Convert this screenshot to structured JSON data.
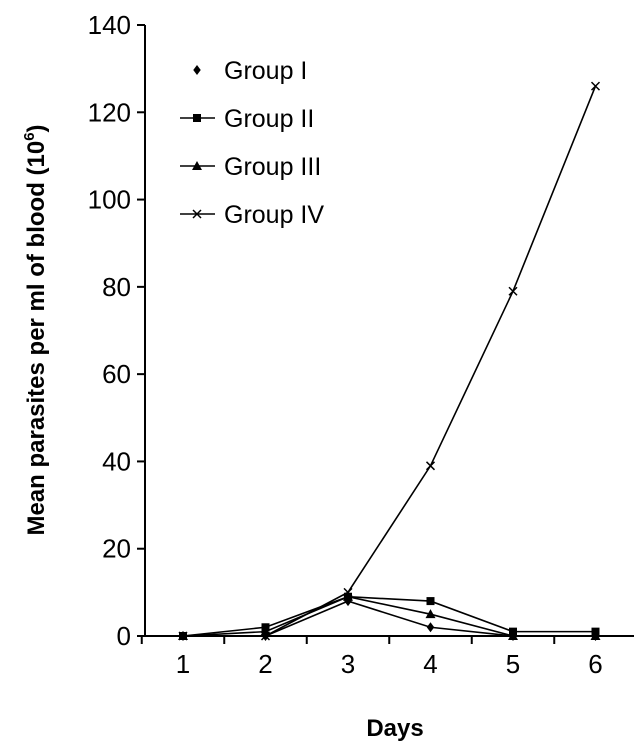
{
  "chart_data": {
    "type": "line",
    "xlabel": "Days",
    "ylabel": "Mean parasites per ml of blood (10",
    "ylabel_superscript": "6",
    "ylabel_close": ")",
    "x": [
      1,
      2,
      3,
      4,
      5,
      6
    ],
    "x_tick_labels": [
      "1",
      "2",
      "3",
      "4",
      "5",
      "6"
    ],
    "ylim": [
      0,
      140
    ],
    "y_ticks": [
      0,
      20,
      40,
      60,
      80,
      100,
      120,
      140
    ],
    "y_tick_labels": [
      "0",
      "20",
      "40",
      "60",
      "80",
      "100",
      "120",
      "140"
    ],
    "grid": false,
    "legend_position": "top-left",
    "series": [
      {
        "name": "Group I",
        "marker": "diamond",
        "values": [
          0,
          0,
          8,
          2,
          0,
          0
        ]
      },
      {
        "name": "Group II",
        "marker": "square",
        "values": [
          0,
          2,
          9,
          8,
          1,
          1
        ]
      },
      {
        "name": "Group III",
        "marker": "triangle",
        "values": [
          0,
          1,
          9,
          5,
          0,
          0
        ]
      },
      {
        "name": "Group IV",
        "marker": "x",
        "values": [
          0,
          0,
          10,
          39,
          79,
          126
        ]
      }
    ]
  }
}
